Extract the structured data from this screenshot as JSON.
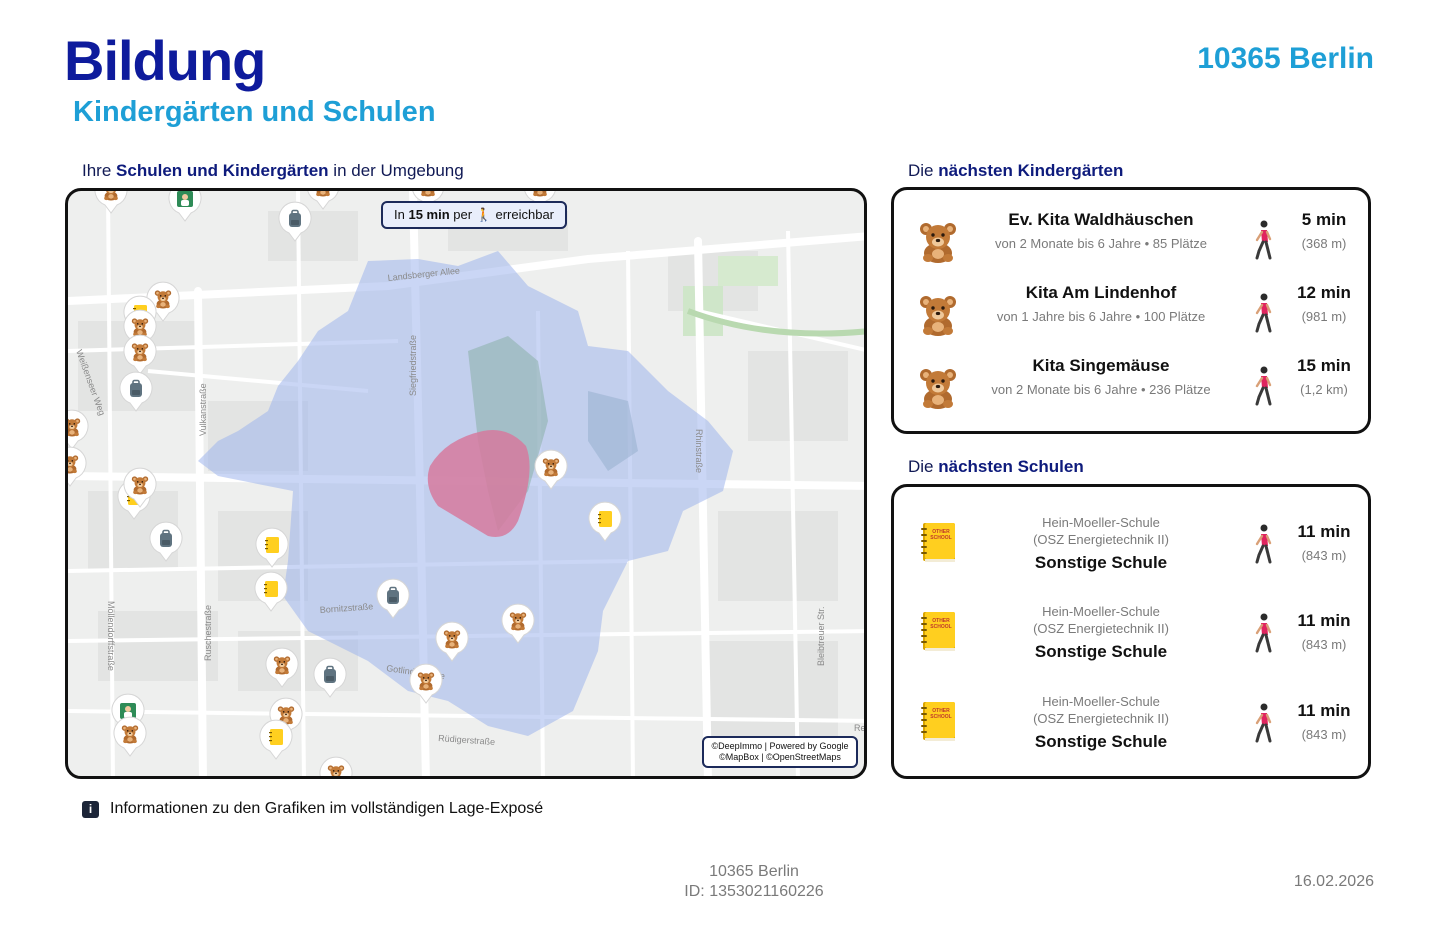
{
  "header": {
    "title": "Bildung",
    "subtitle": "Kindergärten und Schulen",
    "city": "10365 Berlin"
  },
  "map": {
    "caption_prefix": "Ihre ",
    "caption_bold": "Schulen und Kindergärten",
    "caption_suffix": " in der Umgebung",
    "reach_prefix": "In ",
    "reach_bold": "15 min",
    "reach_mid": " per ",
    "reach_suffix": " erreichbar",
    "attribution_line1": "©DeepImmo | Powered by Google",
    "attribution_line2": "©MapBox | ©OpenStreetMaps",
    "street_labels": [
      "Landsberger Allee",
      "Siegfriedstraße",
      "Vulkanstraße",
      "Weißenseer Weg",
      "Rhinstraße",
      "Möllendorffstraße",
      "Ruschestraße",
      "Bornitzstraße",
      "Gotlindestraße",
      "Rüdigerstraße",
      "Bleibtreuer Str.",
      "Rei"
    ]
  },
  "kindergartens": {
    "caption_prefix": "Die ",
    "caption_bold": "nächsten Kindergärten",
    "items": [
      {
        "name": "Ev. Kita Waldhäuschen",
        "detail": "von 2 Monate bis 6 Jahre • 85 Plätze",
        "time": "5 min",
        "distance": "(368 m)",
        "icon": "teddy-bear-icon"
      },
      {
        "name": "Kita Am Lindenhof",
        "detail": "von 1 Jahre bis 6 Jahre • 100 Plätze",
        "time": "12 min",
        "distance": "(981 m)",
        "icon": "teddy-bear-icon"
      },
      {
        "name": "Kita Singemäuse",
        "detail": "von 2 Monate bis 6 Jahre • 236 Plätze",
        "time": "15 min",
        "distance": "(1,2 km)",
        "icon": "teddy-bear-icon"
      }
    ]
  },
  "schools": {
    "caption_prefix": "Die ",
    "caption_bold": "nächsten Schulen",
    "items": [
      {
        "name_line1": "Hein-Moeller-Schule",
        "name_line2": "(OSZ Energietechnik II)",
        "type": "Sonstige Schule",
        "time": "11 min",
        "distance": "(843 m)",
        "icon": "other-school-book-icon",
        "icon_text_1": "OTHER",
        "icon_text_2": "SCHOOL"
      },
      {
        "name_line1": "Hein-Moeller-Schule",
        "name_line2": "(OSZ Energietechnik II)",
        "type": "Sonstige Schule",
        "time": "11 min",
        "distance": "(843 m)",
        "icon": "other-school-book-icon",
        "icon_text_1": "OTHER",
        "icon_text_2": "SCHOOL"
      },
      {
        "name_line1": "Hein-Moeller-Schule",
        "name_line2": "(OSZ Energietechnik II)",
        "type": "Sonstige Schule",
        "time": "11 min",
        "distance": "(843 m)",
        "icon": "other-school-book-icon",
        "icon_text_1": "OTHER",
        "icon_text_2": "SCHOOL"
      }
    ]
  },
  "info": {
    "icon": "i",
    "text": "Informationen zu den Grafiken im vollständigen Lage-Exposé"
  },
  "footer": {
    "city": "10365 Berlin",
    "id": "ID: 1353021160226",
    "date": "16.02.2026"
  },
  "colors": {
    "title": "#0e1b9c",
    "accent": "#1e9fd6",
    "isochrone": "#9fb5ec",
    "center_zone": "#d67a9e",
    "walker_shirt": "#e0245e"
  }
}
